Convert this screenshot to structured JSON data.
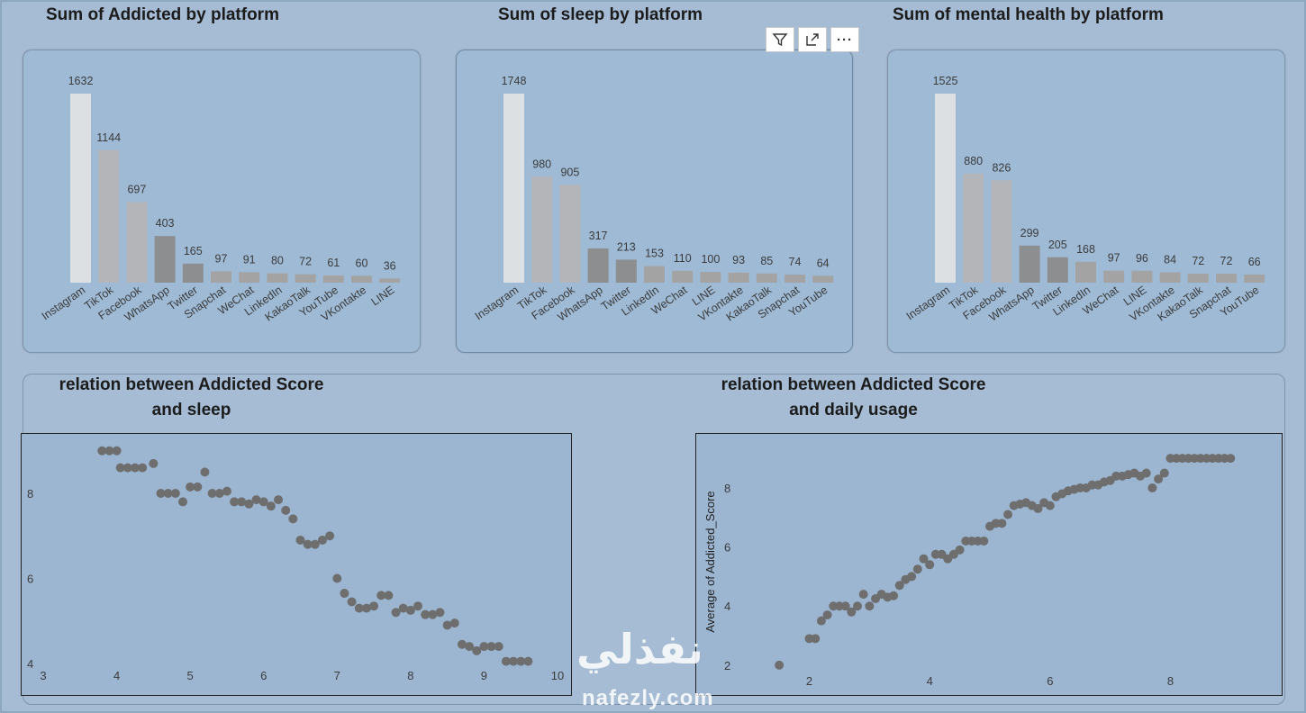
{
  "titles": {
    "addicted": "Sum of Addicted  by platform",
    "sleep": "Sum of sleep by platform",
    "mental": "Sum of mental health by platform",
    "scatter_sleep_line1": "relation between  Addicted Score",
    "scatter_sleep_line2": "and sleep",
    "scatter_usage_line1": "relation between  Addicted Score",
    "scatter_usage_line2": "and daily usage"
  },
  "toolbar": {
    "filter_icon": "filter-icon",
    "focus_icon": "focus-mode-icon",
    "more_icon": "more-options-icon",
    "more_label": "···"
  },
  "watermark": {
    "arabic": "نفذلي",
    "latin": "nafezly.com"
  },
  "colors": {
    "highlight": "#dde0e2",
    "bar_light": "#b3b5b8",
    "bar_mid": "#a3a3a3",
    "bar_dark": "#8d8e90",
    "point": "#6e6e6e"
  },
  "chart_data": [
    {
      "type": "bar",
      "title": "Sum of Addicted  by platform",
      "categories": [
        "Instagram",
        "TikTok",
        "Facebook",
        "WhatsApp",
        "Twitter",
        "Snapchat",
        "WeChat",
        "LinkedIn",
        "KakaoTalk",
        "YouTube",
        "VKontakte",
        "LINE"
      ],
      "values": [
        1632,
        1144,
        697,
        403,
        165,
        97,
        91,
        80,
        72,
        61,
        60,
        36
      ]
    },
    {
      "type": "bar",
      "title": "Sum of sleep by platform",
      "categories": [
        "Instagram",
        "TikTok",
        "Facebook",
        "WhatsApp",
        "Twitter",
        "LinkedIn",
        "WeChat",
        "LINE",
        "VKontakte",
        "KakaoTalk",
        "Snapchat",
        "YouTube"
      ],
      "values": [
        1748,
        980,
        905,
        317,
        213,
        153,
        110,
        100,
        93,
        85,
        74,
        64
      ]
    },
    {
      "type": "bar",
      "title": "Sum of mental health by platform",
      "categories": [
        "Instagram",
        "TikTok",
        "Facebook",
        "WhatsApp",
        "Twitter",
        "LinkedIn",
        "WeChat",
        "LINE",
        "VKontakte",
        "KakaoTalk",
        "Snapchat",
        "YouTube"
      ],
      "values": [
        1525,
        880,
        826,
        299,
        205,
        168,
        97,
        96,
        84,
        72,
        72,
        66
      ]
    },
    {
      "type": "scatter",
      "title": "relation between  Addicted Score and sleep",
      "xlim": [
        3,
        10
      ],
      "ylim": [
        4,
        9.1
      ],
      "xticks": [
        3,
        4,
        5,
        6,
        7,
        8,
        9,
        10
      ],
      "yticks": [
        4,
        6,
        8
      ],
      "points": [
        [
          3.8,
          9.0
        ],
        [
          3.9,
          9.0
        ],
        [
          4.0,
          9.0
        ],
        [
          4.05,
          8.6
        ],
        [
          4.15,
          8.6
        ],
        [
          4.25,
          8.6
        ],
        [
          4.35,
          8.6
        ],
        [
          4.5,
          8.7
        ],
        [
          4.6,
          8.0
        ],
        [
          4.7,
          8.0
        ],
        [
          4.8,
          8.0
        ],
        [
          4.9,
          7.8
        ],
        [
          5.0,
          8.15
        ],
        [
          5.1,
          8.15
        ],
        [
          5.2,
          8.5
        ],
        [
          5.3,
          8.0
        ],
        [
          5.4,
          8.0
        ],
        [
          5.5,
          8.05
        ],
        [
          5.6,
          7.8
        ],
        [
          5.7,
          7.8
        ],
        [
          5.8,
          7.75
        ],
        [
          5.9,
          7.85
        ],
        [
          6.0,
          7.8
        ],
        [
          6.1,
          7.7
        ],
        [
          6.2,
          7.85
        ],
        [
          6.3,
          7.6
        ],
        [
          6.4,
          7.4
        ],
        [
          6.5,
          6.9
        ],
        [
          6.6,
          6.8
        ],
        [
          6.7,
          6.8
        ],
        [
          6.8,
          6.9
        ],
        [
          6.9,
          7.0
        ],
        [
          7.0,
          6.0
        ],
        [
          7.1,
          5.65
        ],
        [
          7.2,
          5.45
        ],
        [
          7.3,
          5.3
        ],
        [
          7.4,
          5.3
        ],
        [
          7.5,
          5.35
        ],
        [
          7.6,
          5.6
        ],
        [
          7.7,
          5.6
        ],
        [
          7.8,
          5.2
        ],
        [
          7.9,
          5.3
        ],
        [
          8.0,
          5.25
        ],
        [
          8.1,
          5.35
        ],
        [
          8.2,
          5.15
        ],
        [
          8.3,
          5.15
        ],
        [
          8.4,
          5.2
        ],
        [
          8.5,
          4.9
        ],
        [
          8.6,
          4.95
        ],
        [
          8.7,
          4.45
        ],
        [
          8.8,
          4.4
        ],
        [
          8.9,
          4.3
        ],
        [
          9.0,
          4.4
        ],
        [
          9.1,
          4.4
        ],
        [
          9.2,
          4.4
        ],
        [
          9.3,
          4.05
        ],
        [
          9.4,
          4.05
        ],
        [
          9.5,
          4.05
        ],
        [
          9.6,
          4.05
        ]
      ]
    },
    {
      "type": "scatter",
      "title": "relation between  Addicted Score and daily usage",
      "ylabel": "Average of Addicted_Score",
      "xlim": [
        0.6,
        9.4
      ],
      "ylim": [
        1.6,
        9.4
      ],
      "xticks": [
        2,
        4,
        6,
        8
      ],
      "yticks": [
        2,
        4,
        6,
        8
      ],
      "points": [
        [
          1.5,
          2.0
        ],
        [
          2.0,
          2.9
        ],
        [
          2.1,
          2.9
        ],
        [
          2.2,
          3.5
        ],
        [
          2.3,
          3.7
        ],
        [
          2.4,
          4.0
        ],
        [
          2.5,
          4.0
        ],
        [
          2.6,
          4.0
        ],
        [
          2.7,
          3.8
        ],
        [
          2.8,
          4.0
        ],
        [
          2.9,
          4.4
        ],
        [
          3.0,
          4.0
        ],
        [
          3.1,
          4.25
        ],
        [
          3.2,
          4.4
        ],
        [
          3.3,
          4.3
        ],
        [
          3.4,
          4.35
        ],
        [
          3.5,
          4.7
        ],
        [
          3.6,
          4.9
        ],
        [
          3.7,
          5.0
        ],
        [
          3.8,
          5.25
        ],
        [
          3.9,
          5.6
        ],
        [
          4.0,
          5.4
        ],
        [
          4.1,
          5.75
        ],
        [
          4.2,
          5.75
        ],
        [
          4.3,
          5.6
        ],
        [
          4.4,
          5.75
        ],
        [
          4.5,
          5.9
        ],
        [
          4.6,
          6.2
        ],
        [
          4.7,
          6.2
        ],
        [
          4.8,
          6.2
        ],
        [
          4.9,
          6.2
        ],
        [
          5.0,
          6.7
        ],
        [
          5.1,
          6.8
        ],
        [
          5.2,
          6.8
        ],
        [
          5.3,
          7.1
        ],
        [
          5.4,
          7.4
        ],
        [
          5.5,
          7.45
        ],
        [
          5.6,
          7.5
        ],
        [
          5.7,
          7.4
        ],
        [
          5.8,
          7.3
        ],
        [
          5.9,
          7.5
        ],
        [
          6.0,
          7.4
        ],
        [
          6.1,
          7.7
        ],
        [
          6.2,
          7.8
        ],
        [
          6.3,
          7.9
        ],
        [
          6.4,
          7.95
        ],
        [
          6.5,
          8.0
        ],
        [
          6.6,
          8.0
        ],
        [
          6.7,
          8.1
        ],
        [
          6.8,
          8.1
        ],
        [
          6.9,
          8.2
        ],
        [
          7.0,
          8.25
        ],
        [
          7.1,
          8.4
        ],
        [
          7.2,
          8.4
        ],
        [
          7.3,
          8.45
        ],
        [
          7.4,
          8.5
        ],
        [
          7.5,
          8.4
        ],
        [
          7.6,
          8.5
        ],
        [
          7.7,
          8.0
        ],
        [
          7.8,
          8.3
        ],
        [
          7.9,
          8.5
        ],
        [
          8.0,
          9.0
        ],
        [
          8.1,
          9.0
        ],
        [
          8.2,
          9.0
        ],
        [
          8.3,
          9.0
        ],
        [
          8.4,
          9.0
        ],
        [
          8.5,
          9.0
        ],
        [
          8.6,
          9.0
        ],
        [
          8.7,
          9.0
        ],
        [
          8.8,
          9.0
        ],
        [
          8.9,
          9.0
        ],
        [
          9.0,
          9.0
        ]
      ]
    }
  ]
}
